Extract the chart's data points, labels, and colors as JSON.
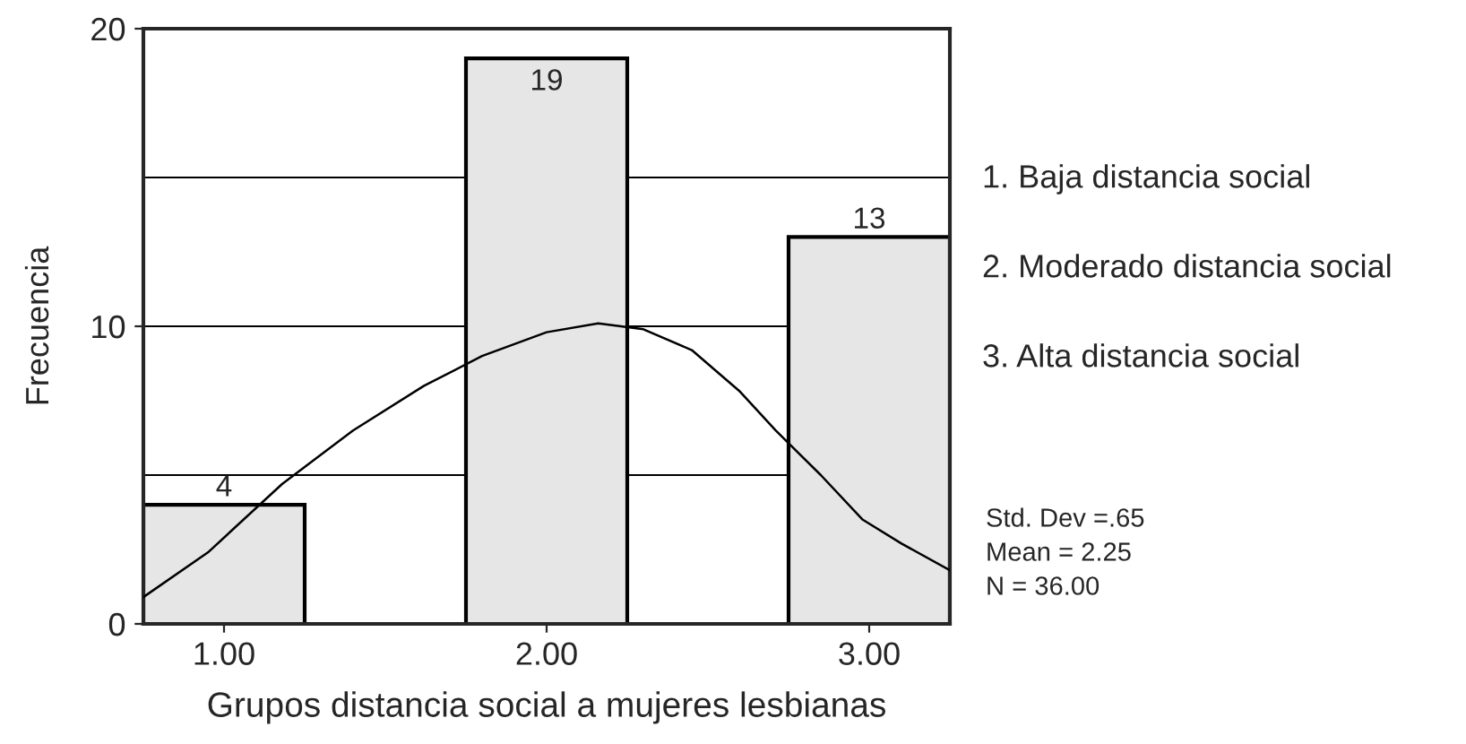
{
  "chart_data": {
    "type": "bar",
    "xlabel": "Grupos distancia social a mujeres lesbianas",
    "ylabel": "Frecuencia",
    "x": [
      1,
      2,
      3
    ],
    "series": [
      {
        "color": "#e6e6e6",
        "values": [
          4,
          19,
          13
        ],
        "value_labels": [
          "4",
          "19",
          "13"
        ]
      },
      {
        "type": "line",
        "color": "#000000",
        "x": [
          0.75,
          0.95,
          1.18,
          1.4,
          1.62,
          1.8,
          2.0,
          2.16,
          2.3,
          2.45,
          2.6,
          2.71,
          2.85,
          2.98,
          3.1,
          3.25
        ],
        "values": [
          0.9,
          2.4,
          4.7,
          6.5,
          8.0,
          9.0,
          9.8,
          10.1,
          9.9,
          9.2,
          7.8,
          6.5,
          5.0,
          3.5,
          2.7,
          1.8
        ]
      }
    ],
    "xlim": [
      0.75,
      3.25
    ],
    "xticks": [
      {
        "value": 1,
        "label": "1.00"
      },
      {
        "value": 2,
        "label": "2.00"
      },
      {
        "value": 3,
        "label": "3.00"
      }
    ],
    "ylim": [
      0,
      20
    ],
    "yticks": [
      0,
      10,
      20
    ],
    "ref_lines": [
      {
        "axis": "y",
        "value": 5,
        "color": "#000000"
      },
      {
        "axis": "y",
        "value": 10,
        "color": "#000000"
      },
      {
        "axis": "y",
        "value": 15,
        "color": "#000000"
      }
    ],
    "grid": false,
    "legend": false,
    "annotations": [
      "1. Baja distancia social",
      "2. Moderado distancia social",
      "3. Alta distancia social",
      "Std. Dev =.65",
      "Mean = 2.25",
      "N = 36.00"
    ]
  }
}
